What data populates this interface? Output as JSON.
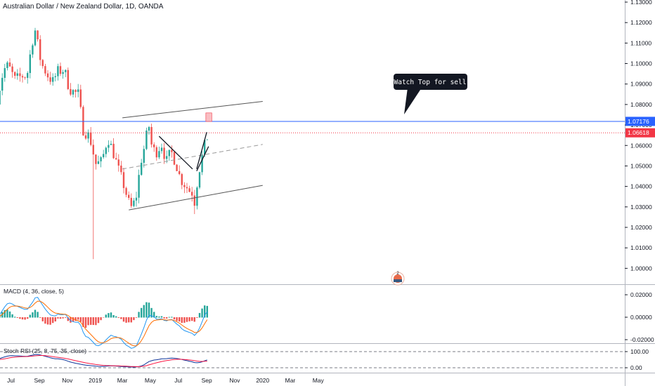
{
  "header": {
    "title": "Australian Dollar / New Zealand Dollar, 1D, OANDA"
  },
  "price_axis": {
    "ticks": [
      "1.13000",
      "1.12000",
      "1.11000",
      "1.10000",
      "1.09000",
      "1.08000",
      "1.07000",
      "1.06000",
      "1.05000",
      "1.04000",
      "1.03000",
      "1.02000",
      "1.01000",
      "1.00000"
    ],
    "current_price_label": "1.06618",
    "level_label": "1.07176"
  },
  "time_axis": {
    "labels": [
      "Jul",
      "Sep",
      "Nov",
      "2019",
      "Mar",
      "May",
      "Jul",
      "Sep",
      "Nov",
      "2020",
      "Mar",
      "May"
    ]
  },
  "annotation": {
    "callout_text": "Watch Top for sell"
  },
  "macd": {
    "label": "MACD (4, 36, close, 5)",
    "ticks": [
      "0.02000",
      "0.00000",
      "-0.02000"
    ]
  },
  "stoch": {
    "label": "Stoch RSI (25, 8, 75, 35, close)",
    "ticks": [
      "100.00",
      "0.00"
    ]
  },
  "colors": {
    "up": "#26a69a",
    "down": "#ef5350",
    "macd_line": "#2196f3",
    "signal_line": "#ff6d00",
    "current_price": "#f23645",
    "level_line": "#2962ff",
    "zone": "#f7a8ad"
  },
  "chart_data": {
    "type": "candlestick",
    "symbol": "AUDNZD",
    "interval": "1D",
    "ylim": [
      0.9975,
      1.1335
    ],
    "trendlines": [
      {
        "name": "upper channel",
        "from": [
          "2019-03-01",
          1.0735
        ],
        "to": [
          "2020-01-01",
          1.0815
        ]
      },
      {
        "name": "mid channel (dashed)",
        "from": [
          "2019-03-01",
          1.0485
        ],
        "to": [
          "2020-01-01",
          1.0605
        ]
      },
      {
        "name": "lower channel",
        "from": [
          "2019-03-15",
          1.0285
        ],
        "to": [
          "2020-01-01",
          1.0405
        ]
      },
      {
        "name": "descending",
        "from": [
          "2019-05-20",
          1.0645
        ],
        "to": [
          "2019-08-01",
          1.0485
        ]
      },
      {
        "name": "rising 1",
        "from": [
          "2019-08-10",
          1.0485
        ],
        "to": [
          "2019-09-01",
          1.0665
        ]
      },
      {
        "name": "rising 2",
        "from": [
          "2019-08-10",
          1.0475
        ],
        "to": [
          "2019-09-05",
          1.0595
        ]
      }
    ],
    "horizontal_levels": [
      1.07176,
      1.06618
    ],
    "sell_zone": {
      "from": "2019-08-30",
      "to": "2019-09-12",
      "low": 1.0717,
      "high": 1.0759
    },
    "path": [
      [
        "2018-06-01",
        1.083
      ],
      [
        "2018-06-15",
        1.097
      ],
      [
        "2018-06-25",
        1.099
      ],
      [
        "2018-07-10",
        1.092
      ],
      [
        "2018-07-25",
        1.094
      ],
      [
        "2018-08-05",
        1.094
      ],
      [
        "2018-08-15",
        1.109
      ],
      [
        "2018-08-22",
        1.117
      ],
      [
        "2018-09-05",
        1.1
      ],
      [
        "2018-09-20",
        1.094
      ],
      [
        "2018-10-01",
        1.091
      ],
      [
        "2018-10-10",
        1.096
      ],
      [
        "2018-10-25",
        1.097
      ],
      [
        "2018-11-05",
        1.088
      ],
      [
        "2018-11-15",
        1.086
      ],
      [
        "2018-11-25",
        1.085
      ],
      [
        "2018-12-05",
        1.068
      ],
      [
        "2018-12-20",
        1.064
      ],
      [
        "2019-01-02",
        1.051
      ],
      [
        "2019-01-15",
        1.052
      ],
      [
        "2019-01-28",
        1.064
      ],
      [
        "2019-02-10",
        1.056
      ],
      [
        "2019-02-22",
        1.047
      ],
      [
        "2019-03-05",
        1.04
      ],
      [
        "2019-03-15",
        1.032
      ],
      [
        "2019-03-22",
        1.029
      ],
      [
        "2019-04-01",
        1.036
      ],
      [
        "2019-04-10",
        1.052
      ],
      [
        "2019-04-20",
        1.061
      ],
      [
        "2019-04-27",
        1.071
      ],
      [
        "2019-05-05",
        1.058
      ],
      [
        "2019-05-15",
        1.057
      ],
      [
        "2019-05-25",
        1.061
      ],
      [
        "2019-06-05",
        1.052
      ],
      [
        "2019-06-15",
        1.057
      ],
      [
        "2019-06-25",
        1.052
      ],
      [
        "2019-07-05",
        1.044
      ],
      [
        "2019-07-15",
        1.041
      ],
      [
        "2019-07-25",
        1.038
      ],
      [
        "2019-08-01",
        1.037
      ],
      [
        "2019-08-06",
        1.032
      ],
      [
        "2019-08-12",
        1.044
      ],
      [
        "2019-08-20",
        1.053
      ],
      [
        "2019-08-30",
        1.062
      ],
      [
        "2019-09-05",
        1.0662
      ]
    ]
  }
}
